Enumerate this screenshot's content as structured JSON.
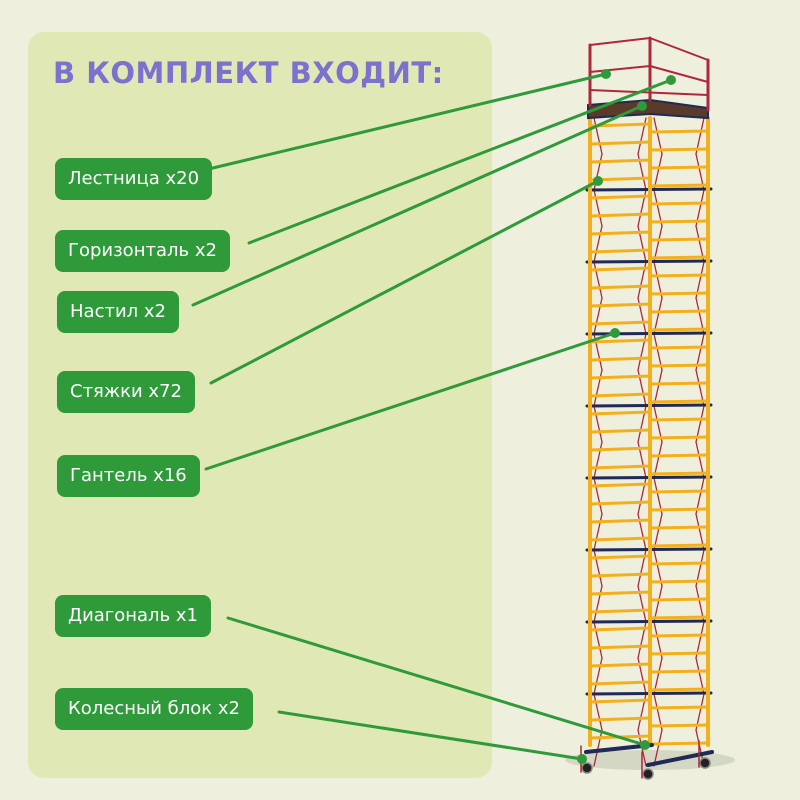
{
  "title": "В КОМПЛЕКТ ВХОДИТ:",
  "items": [
    {
      "label": "Лестница x20"
    },
    {
      "label": "Горизонталь x2"
    },
    {
      "label": "Настил x2"
    },
    {
      "label": "Стяжки x72"
    },
    {
      "label": "Гантель x16"
    },
    {
      "label": "Диагональ x1"
    },
    {
      "label": "Колесный блок x2"
    }
  ],
  "colors": {
    "title": "#7a72cc",
    "label_bg": "#2f9a3a",
    "callout_line": "#2f9a3a",
    "panel": "#e0e8b5",
    "background": "#eef0dd",
    "ladder": "#f2b01e",
    "top_frame": "#b0263a",
    "horizontal": "#1f2a55"
  }
}
